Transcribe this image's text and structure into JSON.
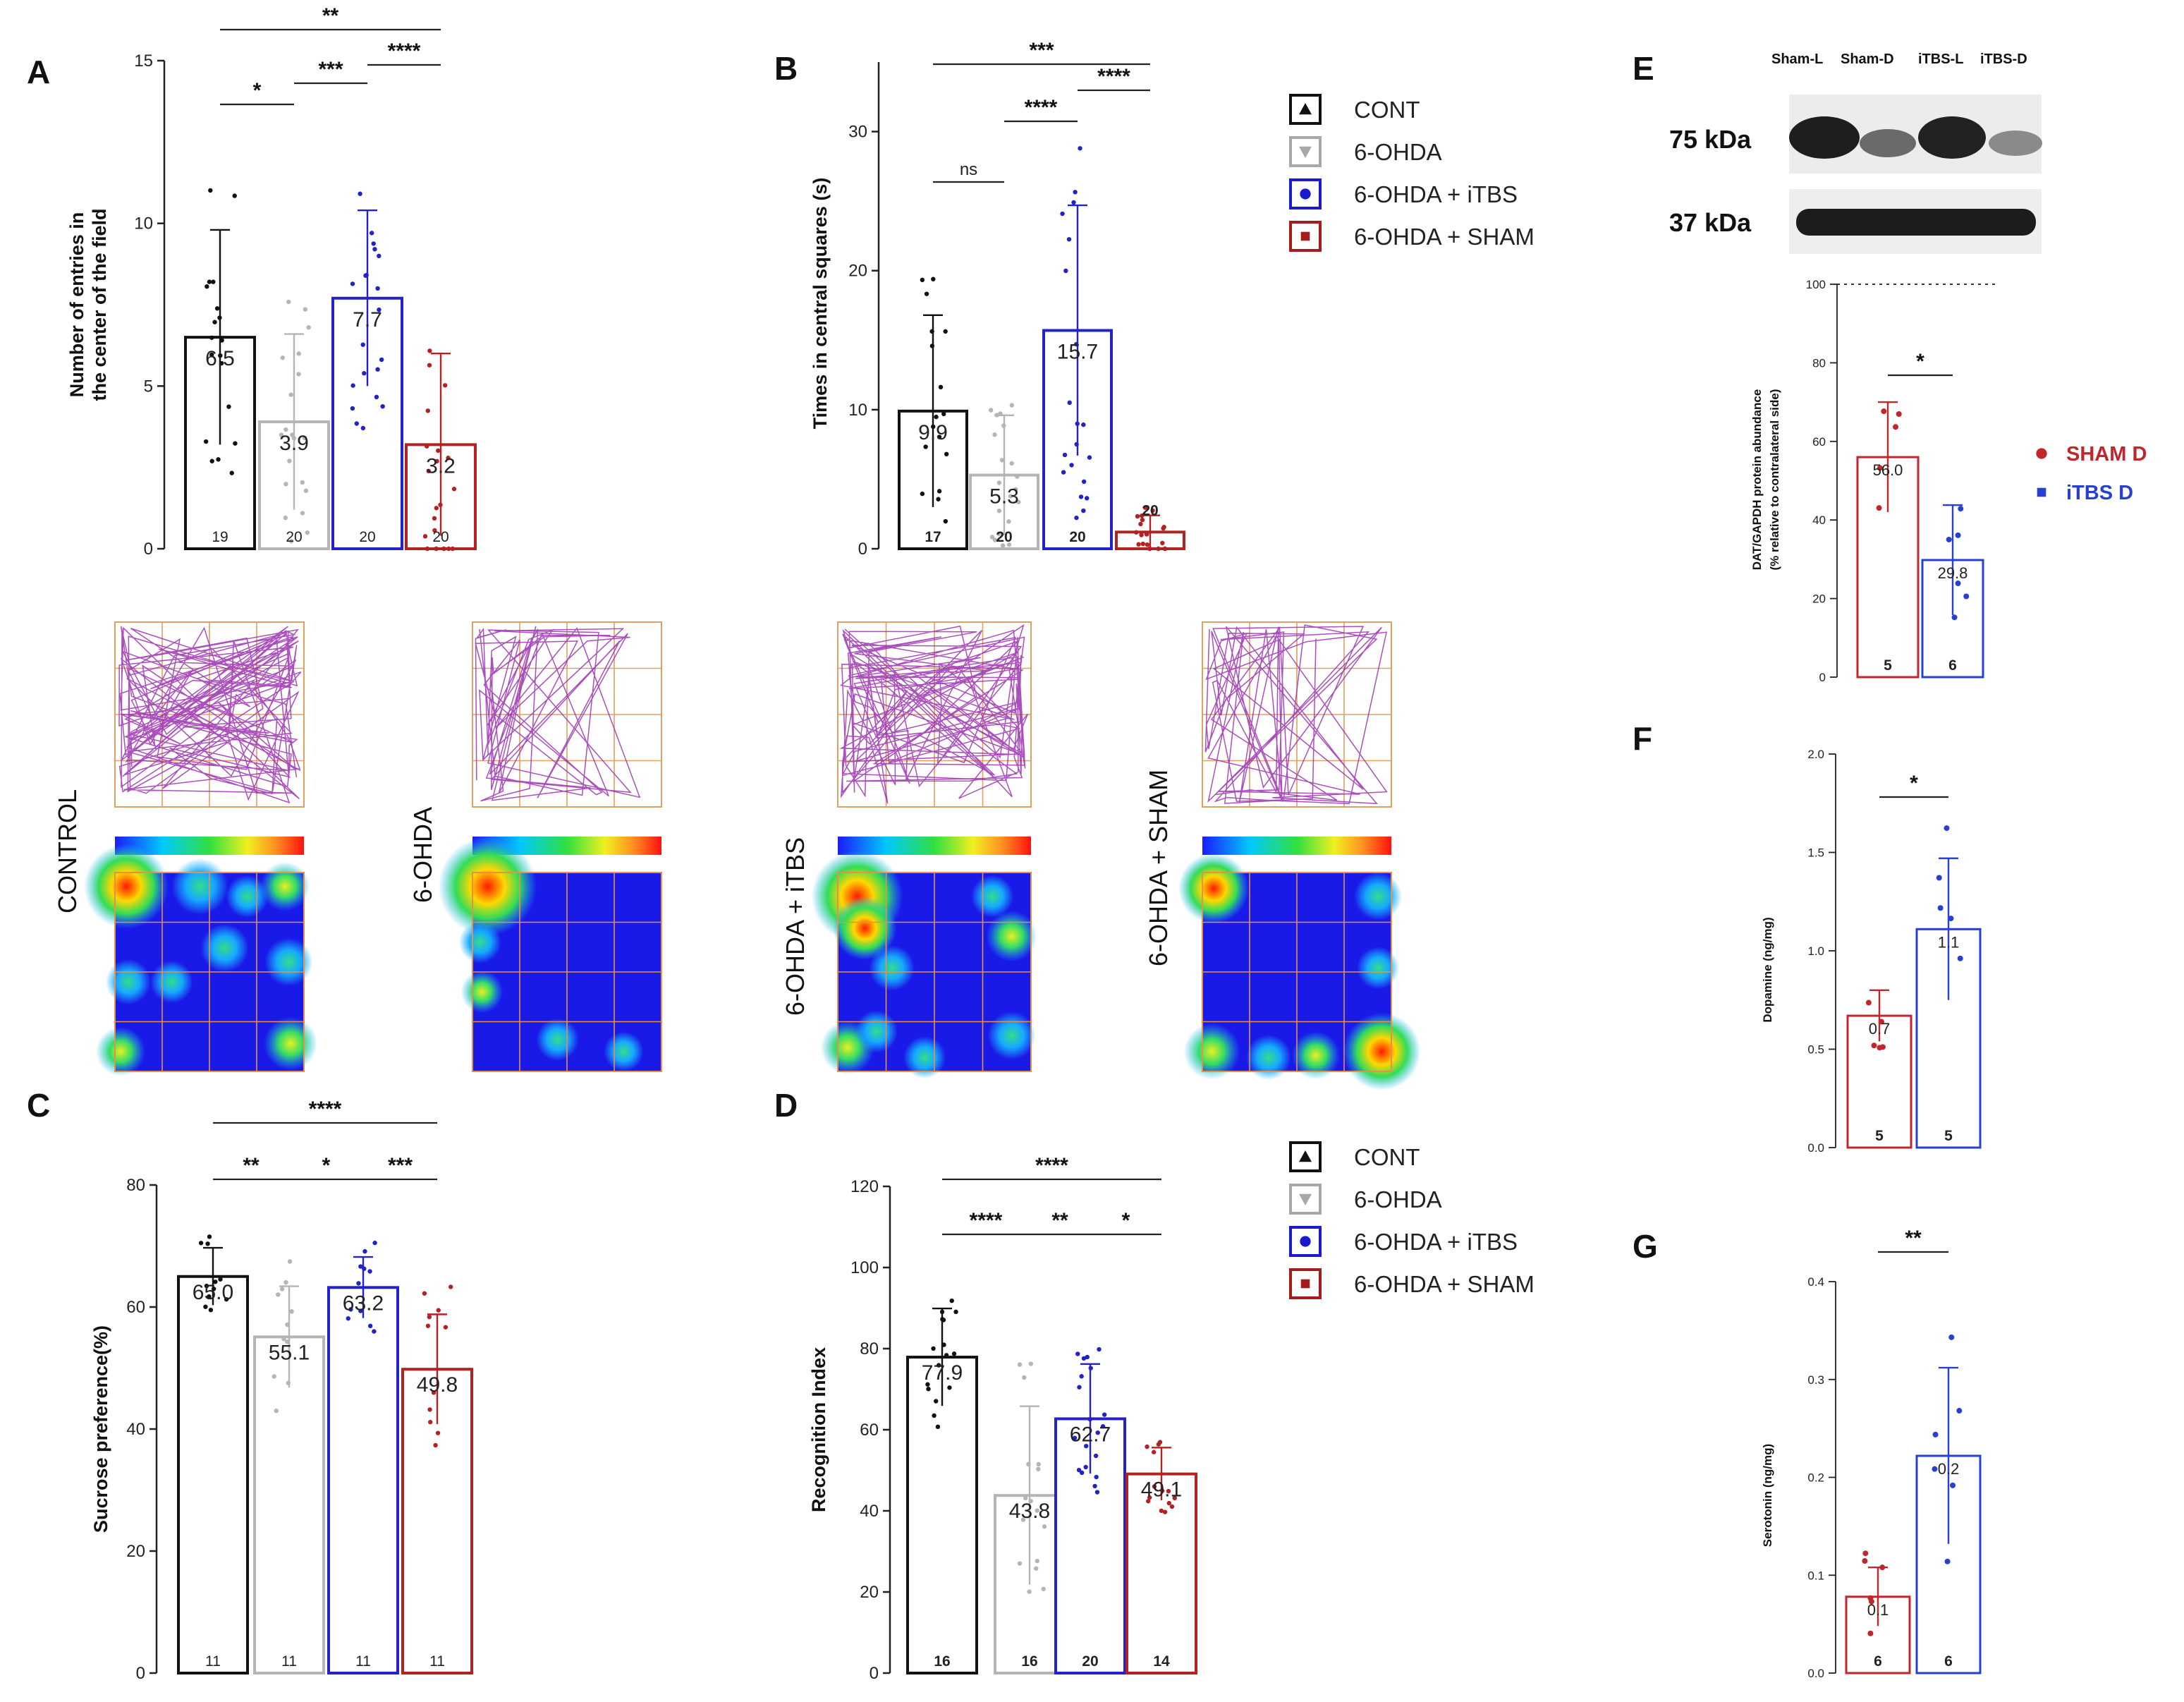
{
  "colors": {
    "cont": "#111111",
    "ohda": "#b5b5b5",
    "itbs": "#2222c8",
    "sham": "#b22222",
    "sham_d": "#c0272d",
    "itbs_d": "#2840d0"
  },
  "legend": {
    "items": [
      {
        "label": "CONT",
        "marker": "triangle-up",
        "color": "#111111"
      },
      {
        "label": "6-OHDA",
        "marker": "triangle-down",
        "color": "#a8a8a8"
      },
      {
        "label": "6-OHDA + iTBS",
        "marker": "circle",
        "color": "#1a1acc"
      },
      {
        "label": "6-OHDA + SHAM",
        "marker": "square",
        "color": "#a51c1c"
      }
    ],
    "items2": [
      {
        "label": "CONT",
        "marker": "triangle-up",
        "color": "#111111"
      },
      {
        "label": "6-OHDA",
        "marker": "triangle-down",
        "color": "#a8a8a8"
      },
      {
        "label": "6-OHDA + iTBS",
        "marker": "circle",
        "color": "#1a1acc"
      },
      {
        "label": "6-OHDA + SHAM",
        "marker": "square",
        "color": "#a51c1c"
      }
    ],
    "efg": [
      {
        "label": "SHAM D",
        "marker": "circle",
        "color": "#c0272d"
      },
      {
        "label": "iTBS D",
        "marker": "square",
        "color": "#2840d0"
      }
    ]
  },
  "tracks": {
    "labels": [
      "CONTROL",
      "6-OHDA",
      "6-OHDA + iTBS",
      "6-OHDA + SHAM"
    ]
  },
  "blot": {
    "lanes": [
      "Sham-L",
      "Sham-D",
      "iTBS-L",
      "iTBS-D"
    ],
    "bands": [
      "75 kDa",
      "37 kDa"
    ]
  },
  "chart_data": [
    {
      "panel": "A",
      "type": "bar",
      "ylabel": [
        "Number of entries in",
        "the center of the field"
      ],
      "ylim": [
        0,
        15
      ],
      "yticks": [
        0,
        5,
        10,
        15
      ],
      "categories": [
        "CONT",
        "6-OHDA",
        "6-OHDA + iTBS",
        "6-OHDA + SHAM"
      ],
      "values": [
        6.5,
        3.9,
        7.7,
        3.2
      ],
      "labels": [
        "6.5",
        "3.9",
        "7.7",
        "3.2"
      ],
      "sd": [
        3.3,
        2.7,
        2.7,
        2.8
      ],
      "n": [
        "19",
        "20",
        "20",
        "20"
      ],
      "significance": [
        {
          "from": 0,
          "to": 3,
          "label": "**"
        },
        {
          "from": 0,
          "to": 1,
          "label": "*"
        },
        {
          "from": 1,
          "to": 2,
          "label": "***"
        },
        {
          "from": 2,
          "to": 3,
          "label": "****"
        }
      ]
    },
    {
      "panel": "B",
      "type": "bar",
      "ylabel": [
        "Times in central squares (s)"
      ],
      "ylim": [
        0,
        35
      ],
      "yticks": [
        0,
        10,
        20,
        30
      ],
      "categories": [
        "CONT",
        "6-OHDA",
        "6-OHDA + iTBS",
        "6-OHDA + SHAM"
      ],
      "values": [
        9.9,
        5.3,
        15.7,
        1.2
      ],
      "labels": [
        "9.9",
        "5.3",
        "15.7",
        ""
      ],
      "sd": [
        6.9,
        4.3,
        9.0,
        1.2
      ],
      "n": [
        "17",
        "20",
        "20",
        "20"
      ],
      "significance": [
        {
          "from": 0,
          "to": 3,
          "label": "***"
        },
        {
          "from": 0,
          "to": 1,
          "label": "ns"
        },
        {
          "from": 1,
          "to": 2,
          "label": "****"
        },
        {
          "from": 2,
          "to": 3,
          "label": "****"
        }
      ]
    },
    {
      "panel": "C",
      "type": "bar",
      "ylabel": [
        "Sucrose preference(%)"
      ],
      "ylim": [
        0,
        80
      ],
      "yticks": [
        0,
        20,
        40,
        60,
        80
      ],
      "categories": [
        "CONT",
        "6-OHDA",
        "6-OHDA + iTBS",
        "6-OHDA + SHAM"
      ],
      "values": [
        65.0,
        55.1,
        63.2,
        49.8
      ],
      "labels": [
        "65.0",
        "55.1",
        "63.2",
        "49.8"
      ],
      "sd": [
        4.7,
        8.3,
        5.0,
        9.0
      ],
      "n": [
        "11",
        "11",
        "11",
        "11"
      ],
      "significance": [
        {
          "from": 0,
          "to": 3,
          "label": "****"
        },
        {
          "from": 0,
          "to": 1,
          "label": "**"
        },
        {
          "from": 1,
          "to": 2,
          "label": "*"
        },
        {
          "from": 2,
          "to": 3,
          "label": "***"
        }
      ]
    },
    {
      "panel": "D",
      "type": "bar",
      "ylabel": [
        "Recognition Index"
      ],
      "ylim": [
        0,
        120
      ],
      "yticks": [
        0,
        20,
        40,
        60,
        80,
        100,
        120
      ],
      "categories": [
        "CONT",
        "6-OHDA",
        "6-OHDA + iTBS",
        "6-OHDA + SHAM"
      ],
      "values": [
        77.9,
        43.8,
        62.7,
        49.1
      ],
      "labels": [
        "77.9",
        "43.8",
        "62.7",
        "49.1"
      ],
      "sd": [
        12.0,
        22.0,
        13.5,
        6.5
      ],
      "n": [
        "16",
        "16",
        "20",
        "14"
      ],
      "significance": [
        {
          "from": 0,
          "to": 3,
          "label": "****"
        },
        {
          "from": 0,
          "to": 1,
          "label": "****"
        },
        {
          "from": 1,
          "to": 2,
          "label": "**"
        },
        {
          "from": 2,
          "to": 3,
          "label": "*"
        }
      ]
    },
    {
      "panel": "E",
      "type": "bar",
      "ylabel": [
        "DAT/GAPDH protein abundance",
        "(% relative to contralateral side)"
      ],
      "ylim": [
        0,
        100
      ],
      "yticks": [
        0,
        20,
        40,
        60,
        80,
        100
      ],
      "categories": [
        "SHAM D",
        "iTBS D"
      ],
      "values": [
        56.0,
        29.8
      ],
      "labels": [
        "56.0",
        "29.8"
      ],
      "sd": [
        14.0,
        14.0
      ],
      "n": [
        "5",
        "6"
      ],
      "significance": [
        {
          "from": 0,
          "to": 1,
          "label": "*"
        }
      ]
    },
    {
      "panel": "F",
      "type": "bar",
      "ylabel": [
        "Dopamine (ng/mg)"
      ],
      "ylim": [
        0,
        2.0
      ],
      "yticks": [
        "0.0",
        "0.5",
        "1.0",
        "1.5",
        "2.0"
      ],
      "categories": [
        "SHAM D",
        "iTBS D"
      ],
      "values": [
        0.67,
        1.11
      ],
      "labels": [
        "0.7",
        "1.1"
      ],
      "sd": [
        0.13,
        0.36
      ],
      "n": [
        "5",
        "5"
      ],
      "significance": [
        {
          "from": 0,
          "to": 1,
          "label": "*"
        }
      ]
    },
    {
      "panel": "G",
      "type": "bar",
      "ylabel": [
        "Serotonin (ng/mg)"
      ],
      "ylim": [
        0,
        0.4
      ],
      "yticks": [
        "0.0",
        "0.1",
        "0.2",
        "0.3",
        "0.4"
      ],
      "categories": [
        "SHAM D",
        "iTBS D"
      ],
      "values": [
        0.078,
        0.222
      ],
      "labels": [
        "0.1",
        "0.2"
      ],
      "sd": [
        0.03,
        0.09
      ],
      "n": [
        "6",
        "6"
      ],
      "significance": [
        {
          "from": 0,
          "to": 1,
          "label": "**"
        }
      ]
    }
  ]
}
